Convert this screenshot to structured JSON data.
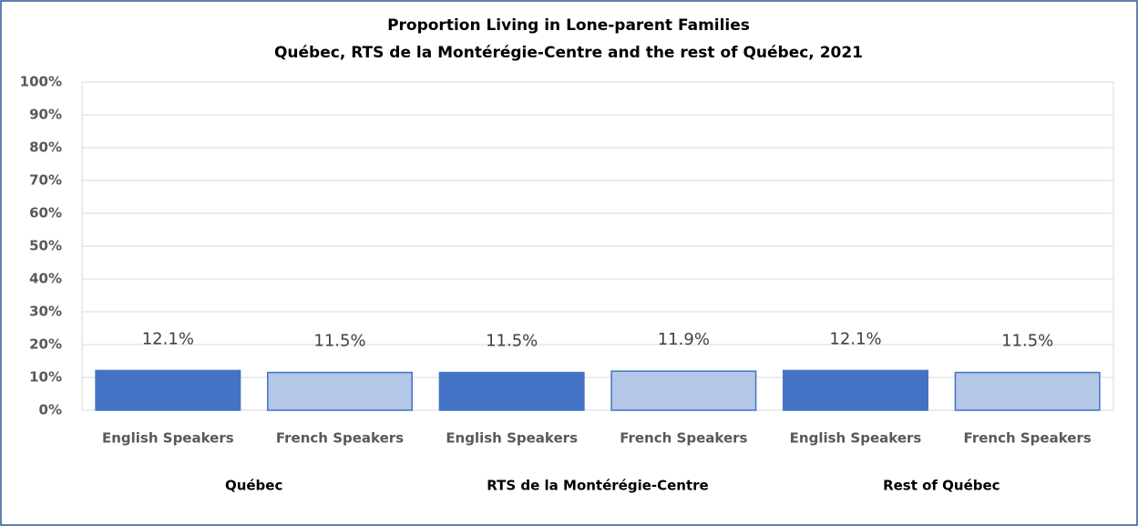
{
  "chart_data": {
    "type": "bar",
    "title": "Proportion Living in Lone-parent Families",
    "subtitle": "Québec, RTS de la Montérégie-Centre and the rest of Québec, 2021",
    "categories": [
      "English Speakers",
      "French Speakers",
      "English Speakers",
      "French Speakers",
      "English Speakers",
      "French Speakers"
    ],
    "groups": [
      "Québec",
      "RTS de la Montérégie-Centre",
      "Rest of Québec"
    ],
    "values": [
      12.1,
      11.5,
      11.5,
      11.9,
      12.1,
      11.5
    ],
    "value_labels": [
      "12.1%",
      "11.5%",
      "11.5%",
      "11.9%",
      "12.1%",
      "11.5%"
    ],
    "colors": [
      "#4472c4",
      "#b4c7e7",
      "#4472c4",
      "#b4c7e7",
      "#4472c4",
      "#b4c7e7"
    ],
    "ylim": [
      0,
      100
    ],
    "yticks": [
      {
        "value": 0,
        "label": "0%"
      },
      {
        "value": 10,
        "label": "10%"
      },
      {
        "value": 20,
        "label": "20%"
      },
      {
        "value": 30,
        "label": "30%"
      },
      {
        "value": 40,
        "label": "40%"
      },
      {
        "value": 50,
        "label": "50%"
      },
      {
        "value": 60,
        "label": "60%"
      },
      {
        "value": 70,
        "label": "70%"
      },
      {
        "value": 80,
        "label": "80%"
      },
      {
        "value": 90,
        "label": "90%"
      },
      {
        "value": 100,
        "label": "100%"
      }
    ],
    "grid": true
  }
}
